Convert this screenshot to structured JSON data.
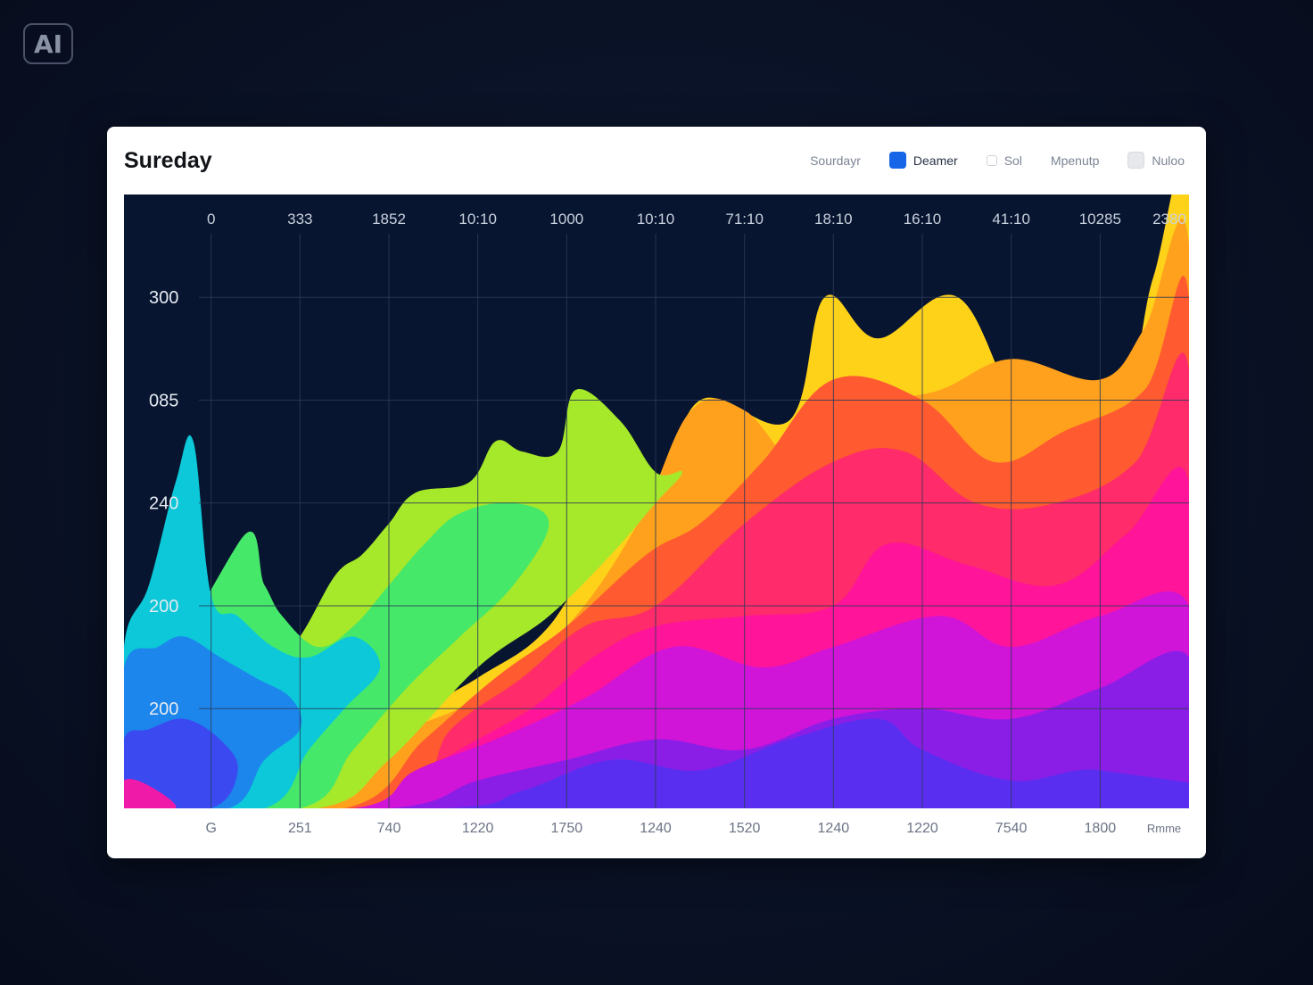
{
  "badge": {
    "label": "AI"
  },
  "card": {
    "title": "Sureday"
  },
  "legend": [
    {
      "label": "Sourdayr",
      "swatch": "none",
      "accent": false
    },
    {
      "label": "Deamer",
      "swatch": "blue",
      "accent": true
    },
    {
      "label": "Sol",
      "swatch": "dot",
      "accent": false
    },
    {
      "label": "Mpenutp",
      "swatch": "none",
      "accent": false
    },
    {
      "label": "Nuloo",
      "swatch": "grey",
      "accent": false
    }
  ],
  "chart_data": {
    "type": "area",
    "top_ticks": [
      "0",
      "333",
      "1852",
      "10:10",
      "1000",
      "10:10",
      "71:10",
      "18:10",
      "16:10",
      "41:10",
      "10285",
      "2380"
    ],
    "bottom_ticks": [
      "G",
      "251",
      "740",
      "1220",
      "1750",
      "1240",
      "1520",
      "1240",
      "1220",
      "7540",
      "1800",
      "Rmme"
    ],
    "y_labels": [
      {
        "label": "300",
        "value": 4
      },
      {
        "label": "085",
        "value": 3
      },
      {
        "label": "240",
        "value": 2
      },
      {
        "label": "200",
        "value": 1
      },
      {
        "label": "200",
        "value": 0
      }
    ],
    "y_range": [
      -0.97,
      5.0
    ],
    "x_range": [
      -0.98,
      11.0
    ],
    "grid": true,
    "legend_placement": "top-right",
    "colors": {
      "background": "#081530",
      "grid": "#2a3a58",
      "top_ticks": "#c9d1de",
      "bottom_ticks": "#6b7384",
      "y_labels": "#e6ebf2"
    },
    "series": [
      {
        "color": "#ffd21a",
        "values": [
          [
            -0.98,
            -0.97
          ],
          [
            11,
            -0.97
          ],
          [
            11,
            5
          ],
          [
            10.6,
            4.2
          ],
          [
            10.2,
            2.9
          ],
          [
            9.2,
            2.8
          ],
          [
            8.4,
            4.0
          ],
          [
            7.5,
            3.6
          ],
          [
            6.9,
            4.0
          ],
          [
            6.5,
            2.8
          ],
          [
            5.5,
            3.0
          ],
          [
            5.0,
            2.0
          ],
          [
            4.5,
            1.8
          ],
          [
            3.8,
            0.8
          ],
          [
            3.0,
            0.3
          ],
          [
            2.0,
            -0.2
          ],
          [
            1.0,
            -0.97
          ]
        ]
      },
      {
        "color": "#ffa11c",
        "values": [
          [
            -0.98,
            -0.97
          ],
          [
            11,
            -0.97
          ],
          [
            11,
            4.5
          ],
          [
            10.5,
            3.7
          ],
          [
            10.0,
            3.2
          ],
          [
            9.0,
            3.4
          ],
          [
            8.2,
            3.1
          ],
          [
            7.3,
            2.9
          ],
          [
            6.7,
            2.3
          ],
          [
            6.0,
            2.9
          ],
          [
            5.4,
            2.9
          ],
          [
            4.8,
            1.8
          ],
          [
            4.0,
            0.8
          ],
          [
            3.0,
            0.1
          ],
          [
            2.0,
            -0.3
          ],
          [
            1.0,
            -0.97
          ]
        ]
      },
      {
        "color": "#ff5a30",
        "values": [
          [
            -0.98,
            -0.97
          ],
          [
            11,
            -0.97
          ],
          [
            11,
            4.0
          ],
          [
            10.5,
            3.1
          ],
          [
            9.6,
            2.7
          ],
          [
            8.8,
            2.4
          ],
          [
            8.0,
            3.0
          ],
          [
            7.0,
            3.2
          ],
          [
            6.2,
            2.4
          ],
          [
            5.5,
            1.8
          ],
          [
            4.9,
            1.5
          ],
          [
            4.0,
            0.8
          ],
          [
            3.2,
            0.3
          ],
          [
            2.4,
            -0.3
          ],
          [
            1.5,
            -0.97
          ]
        ]
      },
      {
        "color": "#ff2b6a",
        "values": [
          [
            -0.98,
            -0.97
          ],
          [
            11,
            -0.97
          ],
          [
            11,
            3.3
          ],
          [
            10.4,
            2.4
          ],
          [
            9.5,
            2.0
          ],
          [
            8.6,
            2.0
          ],
          [
            7.8,
            2.5
          ],
          [
            7.0,
            2.4
          ],
          [
            6.0,
            1.8
          ],
          [
            5.0,
            1.0
          ],
          [
            4.2,
            0.8
          ],
          [
            3.5,
            0.3
          ],
          [
            2.7,
            -0.2
          ],
          [
            2.0,
            -0.97
          ]
        ]
      },
      {
        "color": "#ff149a",
        "values": [
          [
            -0.98,
            -0.97
          ],
          [
            11,
            -0.97
          ],
          [
            11,
            2.2
          ],
          [
            10.3,
            1.7
          ],
          [
            9.5,
            1.2
          ],
          [
            8.5,
            1.4
          ],
          [
            7.6,
            1.6
          ],
          [
            7.0,
            1.0
          ],
          [
            6.0,
            0.9
          ],
          [
            5.0,
            0.8
          ],
          [
            4.3,
            0.5
          ],
          [
            3.6,
            0.0
          ],
          [
            2.6,
            -0.5
          ],
          [
            1.9,
            -0.97
          ]
        ]
      },
      {
        "color": "#d014d8",
        "values": [
          [
            -0.98,
            -0.97
          ],
          [
            11,
            -0.97
          ],
          [
            11,
            1.0
          ],
          [
            10.0,
            0.9
          ],
          [
            9.0,
            0.6
          ],
          [
            8.2,
            0.9
          ],
          [
            7.0,
            0.6
          ],
          [
            6.2,
            0.4
          ],
          [
            5.2,
            0.6
          ],
          [
            4.2,
            0.1
          ],
          [
            3.2,
            -0.3
          ],
          [
            2.3,
            -0.6
          ],
          [
            1.6,
            -0.97
          ]
        ]
      },
      {
        "color": "#8a1ee6",
        "values": [
          [
            -0.98,
            -0.97
          ],
          [
            11,
            -0.97
          ],
          [
            11,
            0.5
          ],
          [
            10.0,
            0.2
          ],
          [
            9.0,
            -0.1
          ],
          [
            8.0,
            0.0
          ],
          [
            7.0,
            -0.1
          ],
          [
            6.0,
            -0.4
          ],
          [
            5.0,
            -0.3
          ],
          [
            4.0,
            -0.5
          ],
          [
            3.0,
            -0.7
          ],
          [
            2.0,
            -0.97
          ]
        ]
      },
      {
        "color": "#5a2ef0",
        "values": [
          [
            -0.98,
            -0.97
          ],
          [
            11,
            -0.97
          ],
          [
            10.0,
            -0.6
          ],
          [
            9.0,
            -0.7
          ],
          [
            8.0,
            -0.4
          ],
          [
            7.5,
            -0.1
          ],
          [
            6.5,
            -0.3
          ],
          [
            5.5,
            -0.6
          ],
          [
            4.5,
            -0.5
          ],
          [
            3.5,
            -0.8
          ],
          [
            2.6,
            -0.97
          ]
        ]
      },
      {
        "color": "#a6e82a",
        "values": [
          [
            -0.98,
            -0.97
          ],
          [
            1.2,
            -0.97
          ],
          [
            2.0,
            -0.5
          ],
          [
            3.0,
            0.4
          ],
          [
            3.8,
            0.9
          ],
          [
            4.5,
            1.5
          ],
          [
            5.0,
            2.0
          ],
          [
            5.3,
            2.3
          ],
          [
            5.0,
            2.3
          ],
          [
            4.6,
            2.8
          ],
          [
            4.1,
            3.1
          ],
          [
            3.9,
            2.5
          ],
          [
            3.5,
            2.5
          ],
          [
            3.2,
            2.6
          ],
          [
            2.9,
            2.2
          ],
          [
            2.3,
            2.1
          ],
          [
            2.0,
            1.8
          ],
          [
            1.7,
            1.5
          ],
          [
            1.4,
            1.3
          ],
          [
            1.0,
            0.7
          ],
          [
            0.6,
            0.3
          ],
          [
            0.2,
            0.8
          ]
        ]
      },
      {
        "color": "#46e86a",
        "values": [
          [
            -0.98,
            -0.97
          ],
          [
            1.0,
            -0.97
          ],
          [
            1.6,
            -0.4
          ],
          [
            2.2,
            0.2
          ],
          [
            2.8,
            0.7
          ],
          [
            3.4,
            1.2
          ],
          [
            3.8,
            1.8
          ],
          [
            3.4,
            2.0
          ],
          [
            2.8,
            1.9
          ],
          [
            2.4,
            1.6
          ],
          [
            2.0,
            1.2
          ],
          [
            1.6,
            0.8
          ],
          [
            1.2,
            0.6
          ],
          [
            0.8,
            0.9
          ],
          [
            0.6,
            1.2
          ],
          [
            0.3,
            1.6
          ]
        ]
      },
      {
        "color": "#0cc8d8",
        "values": [
          [
            -0.98,
            -0.97
          ],
          [
            0.6,
            -0.97
          ],
          [
            1.1,
            -0.4
          ],
          [
            1.5,
            0.0
          ],
          [
            1.9,
            0.4
          ],
          [
            1.6,
            0.7
          ],
          [
            1.1,
            0.5
          ],
          [
            0.7,
            0.6
          ],
          [
            0.3,
            0.9
          ],
          [
            0.0,
            1.1
          ],
          [
            -0.2,
            2.6
          ],
          [
            -0.4,
            2.2
          ],
          [
            -0.7,
            1.2
          ],
          [
            -0.98,
            0.6
          ]
        ]
      },
      {
        "color": "#1c86ec",
        "values": [
          [
            -0.98,
            -0.97
          ],
          [
            0.2,
            -0.97
          ],
          [
            0.6,
            -0.5
          ],
          [
            1.0,
            -0.2
          ],
          [
            0.9,
            0.1
          ],
          [
            0.5,
            0.3
          ],
          [
            0.1,
            0.5
          ],
          [
            -0.3,
            0.7
          ],
          [
            -0.6,
            0.6
          ],
          [
            -0.98,
            0.4
          ]
        ]
      },
      {
        "color": "#3a4af0",
        "values": [
          [
            -0.98,
            -0.97
          ],
          [
            0.0,
            -0.97
          ],
          [
            0.3,
            -0.6
          ],
          [
            0.1,
            -0.3
          ],
          [
            -0.3,
            -0.1
          ],
          [
            -0.7,
            -0.2
          ],
          [
            -0.98,
            -0.3
          ]
        ]
      },
      {
        "color": "#f01aa8",
        "values": [
          [
            -0.98,
            -0.97
          ],
          [
            -0.4,
            -0.97
          ],
          [
            -0.7,
            -0.75
          ],
          [
            -0.98,
            -0.7
          ]
        ]
      }
    ]
  }
}
